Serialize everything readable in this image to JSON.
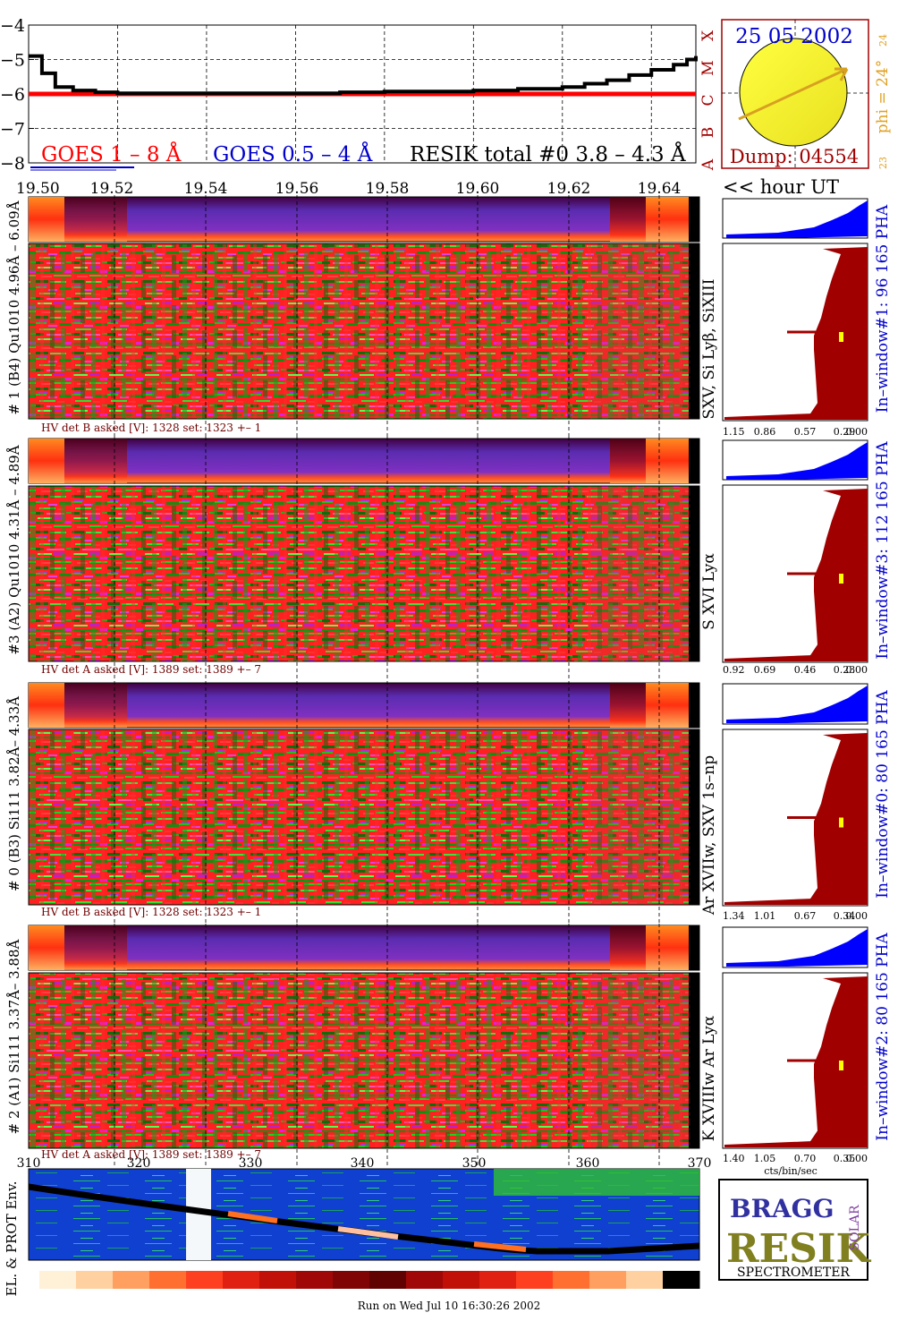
{
  "goes_panel": {
    "ylabels": [
      "−4",
      "−5",
      "−6",
      "−7",
      "−8"
    ],
    "class_labels": [
      "X",
      "M",
      "C",
      "B",
      "A"
    ],
    "legend_goes18": "GOES 1 – 8 Å",
    "legend_goes054": "GOES 0.5 – 4 Å",
    "legend_resik": "RESIK total #0  3.8 – 4.3 Å"
  },
  "sun_panel": {
    "date": "25 05 2002",
    "dump": "Dump: 04554",
    "phi": "phi = 24°",
    "top_num": "24",
    "bottom_num": "23"
  },
  "time_axis": {
    "ticks": [
      "19.50",
      "19.52",
      "19.54",
      "19.56",
      "19.58",
      "19.60",
      "19.62",
      "19.64"
    ],
    "unit": "<< hour UT"
  },
  "channels": [
    {
      "label": "# 1 (B4) Qu1010 4.96Å – 6.09Å",
      "lines": "SXV, Si Lyβ, SiXIII",
      "hv": "HV det B asked [V]:  1328 set:  1323  +–    1",
      "window": "In–window#1:   96 165  PHA",
      "pha_ticks": [
        "1.15",
        "0.86",
        "0.57",
        "0.29",
        "0.00"
      ]
    },
    {
      "label": "#3 (A2) Qu1010  4.31Å – 4.89Å",
      "lines": "S XVI Lyα",
      "hv": "HV det A asked [V]:  1389 set:  1389  +–    7",
      "window": "In–window#3:   112 165  PHA",
      "pha_ticks": [
        "0.92",
        "0.69",
        "0.46",
        "0.23",
        "0.00"
      ]
    },
    {
      "label": "# 0 (B3) Si111  3.82Å– 4.33Å",
      "lines": "Ar XVIIw, SXV 1s–np",
      "hv": "HV det B asked [V]:  1328 set:  1323  +–    1",
      "window": "In–window#0:   80 165  PHA",
      "pha_ticks": [
        "1.34",
        "1.01",
        "0.67",
        "0.34",
        "0.00"
      ]
    },
    {
      "label": "# 2 (A1) Si111  3.37Å–  3.88Å",
      "lines": "K XVIIIw  Ar Lyα",
      "hv": "HV det A asked [V]:  1389 set:  1389  +–    7",
      "window": "In–window#2:   80 165  PHA",
      "pha_ticks": [
        "1.40",
        "1.05",
        "0.70",
        "0.35",
        "0.00"
      ]
    }
  ],
  "pha_xlabel": "cts/bin/sec",
  "orbit_axis": {
    "ticks": [
      "310",
      "320",
      "330",
      "340",
      "350",
      "360",
      "370"
    ],
    "ylabel": "EL. & PROT Env."
  },
  "logo": {
    "bragg": "BRAGG",
    "resik": "RESIK",
    "solar": "SOLAR",
    "spectrometer": "SPECTROMETER"
  },
  "footer": "Run on Wed Jul 10 16:30:26 2002",
  "colors": {
    "goes_red": "#ff0000",
    "goes_blue": "#0000cc",
    "dark_red": "#a00000",
    "pha_blue": "#0000ff",
    "grid": "#000000"
  },
  "chart_data": {
    "type": "line",
    "title": "",
    "xlabel": "<< hour UT",
    "ylabel": "",
    "x": [
      19.5,
      19.503,
      19.506,
      19.51,
      19.515,
      19.52,
      19.53,
      19.54,
      19.55,
      19.56,
      19.57,
      19.58,
      19.59,
      19.6,
      19.61,
      19.62,
      19.625,
      19.63,
      19.635,
      19.64,
      19.645,
      19.648,
      19.65
    ],
    "ylim": [
      -8,
      -4
    ],
    "xlim": [
      19.5,
      19.65
    ],
    "series": [
      {
        "name": "RESIK total #0  3.8 – 4.3 Å",
        "values": [
          -4.9,
          -5.4,
          -5.8,
          -5.9,
          -5.95,
          -5.98,
          -5.98,
          -5.98,
          -5.98,
          -5.98,
          -5.95,
          -5.93,
          -5.93,
          -5.9,
          -5.85,
          -5.8,
          -5.7,
          -5.6,
          -5.45,
          -5.3,
          -5.15,
          -5.0,
          -4.9
        ]
      },
      {
        "name": "GOES 1 – 8 Å",
        "values": [
          -6.0,
          -6.0,
          -6.0,
          -6.0,
          -6.0,
          -6.0,
          -6.0,
          -6.0,
          -6.0,
          -6.0,
          -6.0,
          -6.0,
          -6.0,
          -6.0,
          -6.0,
          -6.0,
          -6.0,
          -6.0,
          -6.0,
          -6.0,
          -6.0,
          -6.0,
          -6.0
        ]
      }
    ]
  }
}
